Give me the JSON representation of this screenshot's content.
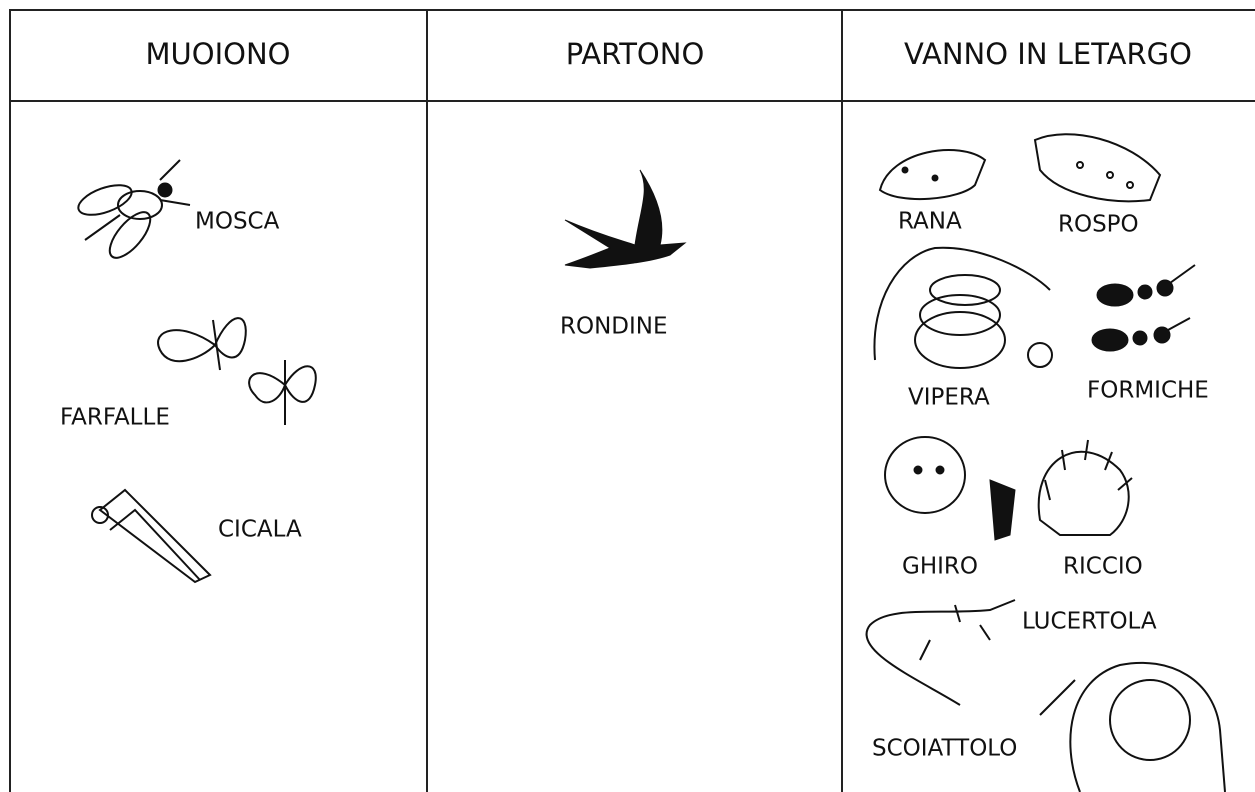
{
  "table": {
    "headers": [
      "MUOIONO",
      "PARTONO",
      "VANNO IN LETARGO"
    ],
    "columns": [
      [
        "MOSCA",
        "FARFALLE",
        "CICALA"
      ],
      [
        "RONDINE"
      ],
      [
        "RANA",
        "ROSPO",
        "VIPERA",
        "FORMICHE",
        "GHIRO",
        "RICCIO",
        "LUCERTOLA",
        "SCOIATTOLO"
      ]
    ]
  }
}
